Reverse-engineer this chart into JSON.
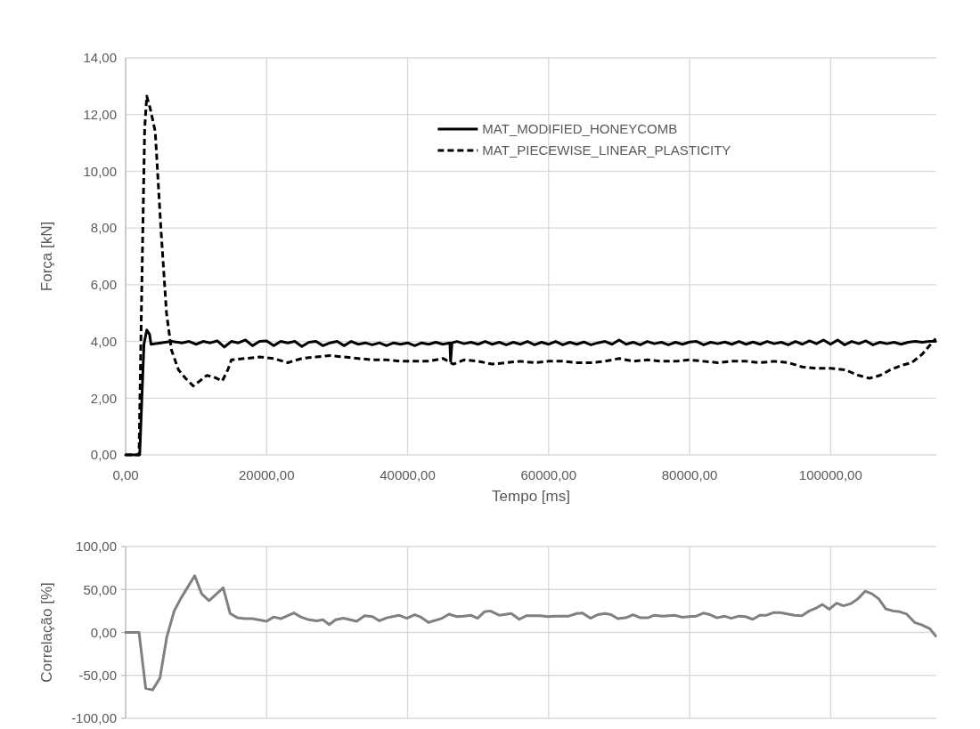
{
  "chart_data": [
    {
      "type": "line",
      "xlabel": "Tempo [ms]",
      "ylabel": "Força [kN]",
      "xlim": [
        0,
        115000
      ],
      "ylim": [
        0,
        14
      ],
      "xticks": [
        {
          "value": 0,
          "label": "0,00"
        },
        {
          "value": 20000,
          "label": "20000,00"
        },
        {
          "value": 40000,
          "label": "40000,00"
        },
        {
          "value": 60000,
          "label": "60000,00"
        },
        {
          "value": 80000,
          "label": "80000,00"
        },
        {
          "value": 100000,
          "label": "100000,00"
        }
      ],
      "yticks": [
        {
          "value": 0,
          "label": "0,00"
        },
        {
          "value": 2,
          "label": "2,00"
        },
        {
          "value": 4,
          "label": "4,00"
        },
        {
          "value": 6,
          "label": "6,00"
        },
        {
          "value": 8,
          "label": "8,00"
        },
        {
          "value": 10,
          "label": "10,00"
        },
        {
          "value": 12,
          "label": "12,00"
        },
        {
          "value": 14,
          "label": "14,00"
        }
      ],
      "grid": true,
      "legend": "top right",
      "series": [
        {
          "name": "MAT_MODIFIED_HONEYCOMB",
          "color": "#000000",
          "line_style": "solid",
          "x": [
            0,
            2000,
            2600,
            3000,
            3400,
            3600,
            5000,
            6500,
            8000,
            9000,
            10000,
            11000,
            12000,
            13000,
            14000,
            15000,
            16000,
            17000,
            18000,
            19000,
            20000,
            21000,
            22000,
            23000,
            24000,
            25000,
            26000,
            27000,
            28000,
            29000,
            30000,
            31000,
            32000,
            33000,
            34000,
            35000,
            36000,
            37000,
            38000,
            39000,
            40000,
            41000,
            42000,
            43000,
            44000,
            45000,
            46000,
            46100,
            46300,
            47000,
            48000,
            49000,
            50000,
            51000,
            52000,
            53000,
            54000,
            55000,
            56000,
            57000,
            58000,
            59000,
            60000,
            61000,
            62000,
            63000,
            64000,
            65000,
            66000,
            67000,
            68000,
            69000,
            70000,
            71000,
            72000,
            73000,
            74000,
            75000,
            76000,
            77000,
            78000,
            79000,
            80000,
            81000,
            82000,
            83000,
            84000,
            85000,
            86000,
            87000,
            88000,
            89000,
            90000,
            91000,
            92000,
            93000,
            94000,
            95000,
            96000,
            97000,
            98000,
            99000,
            100000,
            101000,
            102000,
            103000,
            104000,
            105000,
            106000,
            107000,
            108000,
            109000,
            110000,
            111000,
            112000,
            113000,
            114000,
            114900
          ],
          "values": [
            0,
            0,
            3.9,
            4.4,
            4.25,
            3.9,
            3.95,
            4.0,
            3.95,
            4.0,
            3.9,
            4.0,
            3.95,
            4.02,
            3.8,
            4.0,
            3.95,
            4.05,
            3.85,
            4.0,
            4.02,
            3.85,
            4.0,
            3.95,
            4.0,
            3.82,
            3.97,
            4.0,
            3.85,
            3.95,
            4.0,
            3.85,
            4.0,
            3.9,
            3.95,
            3.88,
            3.95,
            3.85,
            3.95,
            3.9,
            3.95,
            3.85,
            3.95,
            3.9,
            3.97,
            3.9,
            3.95,
            3.3,
            3.95,
            4.0,
            3.92,
            3.97,
            3.9,
            4.0,
            3.9,
            3.97,
            3.88,
            3.97,
            3.9,
            4.0,
            3.88,
            3.97,
            3.9,
            4.0,
            3.88,
            3.97,
            3.9,
            3.98,
            3.88,
            3.95,
            4.0,
            3.9,
            4.05,
            3.9,
            3.97,
            3.88,
            4.0,
            3.92,
            3.97,
            3.88,
            3.97,
            3.9,
            3.98,
            4.0,
            3.88,
            3.97,
            3.92,
            3.98,
            3.9,
            4.0,
            3.9,
            3.98,
            3.9,
            4.0,
            3.92,
            3.97,
            3.88,
            4.0,
            3.9,
            4.02,
            3.92,
            4.05,
            3.9,
            4.05,
            3.88,
            4.0,
            3.92,
            4.02,
            3.88,
            3.97,
            3.92,
            3.97,
            3.9,
            3.97,
            4.0,
            3.97,
            4.0,
            4.0
          ]
        },
        {
          "name": "MAT_PIECEWISE_LINEAR_PLASTICITY",
          "color": "#000000",
          "line_style": "dashed",
          "x": [
            0,
            1900,
            2300,
            2700,
            3000,
            3500,
            4200,
            5000,
            5800,
            6500,
            7500,
            8500,
            9600,
            10500,
            11500,
            12500,
            13700,
            14500,
            15000,
            17000,
            19000,
            21000,
            23000,
            25000,
            27000,
            29000,
            31000,
            33000,
            35000,
            37000,
            39000,
            41000,
            43000,
            45000,
            46500,
            48000,
            50000,
            52000,
            54000,
            56000,
            58000,
            60000,
            62000,
            64000,
            66000,
            68000,
            70000,
            72000,
            74000,
            76000,
            78000,
            80000,
            82000,
            84000,
            86000,
            88000,
            90000,
            92000,
            94000,
            96000,
            98000,
            100000,
            102000,
            104000,
            105500,
            107000,
            108500,
            110000,
            111500,
            113000,
            114900
          ],
          "values": [
            0,
            0,
            6,
            11.5,
            12.65,
            12.2,
            11.4,
            8,
            5,
            3.7,
            3.0,
            2.7,
            2.43,
            2.6,
            2.8,
            2.75,
            2.6,
            3.0,
            3.35,
            3.4,
            3.45,
            3.4,
            3.25,
            3.4,
            3.45,
            3.5,
            3.45,
            3.4,
            3.35,
            3.35,
            3.3,
            3.3,
            3.3,
            3.4,
            3.2,
            3.35,
            3.3,
            3.2,
            3.25,
            3.3,
            3.25,
            3.3,
            3.3,
            3.25,
            3.25,
            3.3,
            3.4,
            3.3,
            3.35,
            3.3,
            3.3,
            3.35,
            3.3,
            3.25,
            3.3,
            3.3,
            3.25,
            3.3,
            3.25,
            3.1,
            3.05,
            3.05,
            3.0,
            2.8,
            2.7,
            2.8,
            3.0,
            3.15,
            3.25,
            3.55,
            4.1
          ]
        }
      ]
    },
    {
      "type": "line",
      "ylabel": "Correlação [%]",
      "xlim": [
        0,
        115000
      ],
      "ylim": [
        -100,
        100
      ],
      "tick_labels": "y",
      "xticks": [
        {
          "value": 0,
          "label": null
        },
        {
          "value": 20000,
          "label": null
        },
        {
          "value": 40000,
          "label": null
        },
        {
          "value": 60000,
          "label": null
        },
        {
          "value": 80000,
          "label": null
        },
        {
          "value": 100000,
          "label": null
        }
      ],
      "yticks": [
        {
          "value": -100,
          "label": "-100,00"
        },
        {
          "value": -50,
          "label": "-50,00"
        },
        {
          "value": 0,
          "label": "0,00"
        },
        {
          "value": 50,
          "label": "50,00"
        },
        {
          "value": 100,
          "label": "100,00"
        }
      ],
      "grid": true,
      "series": [
        {
          "color": "#808080",
          "line_style": "solid",
          "x": [
            0,
            1900,
            2850,
            3830,
            4870,
            5850,
            6890,
            7860,
            8830,
            9800,
            10780,
            11830,
            13840,
            14830,
            15880,
            16850,
            17970,
            20000,
            21000,
            22000,
            23880,
            24920,
            26040,
            27090,
            27990,
            28890,
            29790,
            30910,
            32780,
            33900,
            35020,
            36000,
            37040,
            38760,
            39890,
            41010,
            41910,
            42960,
            44900,
            45870,
            47000,
            47970,
            48950,
            49920,
            50890,
            51720,
            52990,
            54710,
            55830,
            56880,
            58820,
            59870,
            60920,
            62860,
            63990,
            64810,
            65930,
            66980,
            68030,
            68850,
            69820,
            70940,
            71990,
            73040,
            74080,
            74980,
            76180,
            77900,
            78940,
            79920,
            80960,
            81940,
            82910,
            83880,
            84930,
            85900,
            87020,
            87920,
            88970,
            89940,
            90910,
            91880,
            92860,
            94880,
            95930,
            96970,
            97870,
            98840,
            99810,
            100860,
            101830,
            102880,
            103850,
            104900,
            105870,
            106840,
            107810,
            108860,
            109830,
            110800,
            111920,
            112890,
            114090,
            114900
          ],
          "values": [
            0,
            0,
            -65,
            -67,
            -53,
            -5,
            25,
            40,
            53,
            66,
            45,
            37,
            52,
            22,
            17,
            16,
            16,
            13,
            18,
            16,
            22.7,
            17.7,
            14.7,
            13.5,
            14.7,
            9.1,
            14.7,
            16.5,
            13,
            19.5,
            18.4,
            13.5,
            17,
            20,
            16.5,
            20.7,
            17.7,
            11.6,
            16.5,
            21.3,
            18.4,
            19,
            20,
            16.5,
            24,
            25,
            20,
            22,
            15.3,
            19.5,
            19.5,
            18.4,
            19,
            19,
            22,
            22.5,
            16.5,
            20.7,
            22,
            20.7,
            16,
            17,
            20.7,
            17,
            17,
            20,
            19,
            20,
            17.7,
            18.4,
            19,
            22.5,
            20.7,
            17,
            19,
            16.5,
            19,
            18.4,
            15.3,
            20,
            20,
            23,
            23,
            20,
            19.5,
            25,
            28,
            32.5,
            27,
            34,
            31,
            33.5,
            39,
            48,
            45,
            39,
            27.5,
            25,
            24,
            21.3,
            11.6,
            9,
            4.3,
            -4.2
          ]
        }
      ]
    }
  ]
}
